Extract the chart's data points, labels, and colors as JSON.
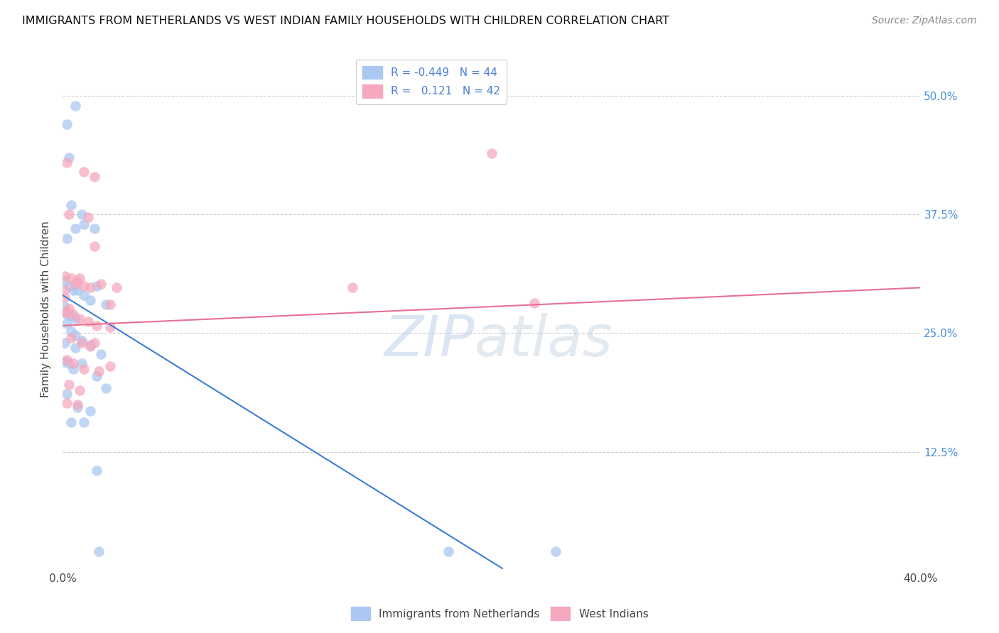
{
  "title": "IMMIGRANTS FROM NETHERLANDS VS WEST INDIAN FAMILY HOUSEHOLDS WITH CHILDREN CORRELATION CHART",
  "source": "Source: ZipAtlas.com",
  "ylabel": "Family Households with Children",
  "y_ticks": [
    "50.0%",
    "37.5%",
    "25.0%",
    "12.5%"
  ],
  "y_tick_vals": [
    0.5,
    0.375,
    0.25,
    0.125
  ],
  "xlim": [
    0.0,
    0.4
  ],
  "ylim": [
    0.0,
    0.55
  ],
  "legend_label_blue": "Immigrants from Netherlands",
  "legend_label_pink": "West Indians",
  "blue_scatter": [
    [
      0.002,
      0.47
    ],
    [
      0.006,
      0.49
    ],
    [
      0.003,
      0.435
    ],
    [
      0.004,
      0.385
    ],
    [
      0.009,
      0.375
    ],
    [
      0.002,
      0.35
    ],
    [
      0.006,
      0.36
    ],
    [
      0.01,
      0.365
    ],
    [
      0.015,
      0.36
    ],
    [
      0.001,
      0.305
    ],
    [
      0.003,
      0.3
    ],
    [
      0.005,
      0.295
    ],
    [
      0.007,
      0.295
    ],
    [
      0.01,
      0.29
    ],
    [
      0.013,
      0.285
    ],
    [
      0.016,
      0.3
    ],
    [
      0.001,
      0.278
    ],
    [
      0.002,
      0.27
    ],
    [
      0.004,
      0.268
    ],
    [
      0.006,
      0.265
    ],
    [
      0.002,
      0.26
    ],
    [
      0.004,
      0.252
    ],
    [
      0.006,
      0.248
    ],
    [
      0.009,
      0.242
    ],
    [
      0.013,
      0.238
    ],
    [
      0.018,
      0.228
    ],
    [
      0.02,
      0.28
    ],
    [
      0.001,
      0.22
    ],
    [
      0.003,
      0.218
    ],
    [
      0.005,
      0.212
    ],
    [
      0.009,
      0.218
    ],
    [
      0.016,
      0.205
    ],
    [
      0.02,
      0.192
    ],
    [
      0.002,
      0.186
    ],
    [
      0.007,
      0.172
    ],
    [
      0.013,
      0.168
    ],
    [
      0.004,
      0.156
    ],
    [
      0.01,
      0.156
    ],
    [
      0.001,
      0.24
    ],
    [
      0.006,
      0.235
    ],
    [
      0.017,
      0.02
    ],
    [
      0.23,
      0.02
    ],
    [
      0.016,
      0.105
    ],
    [
      0.18,
      0.02
    ]
  ],
  "pink_scatter": [
    [
      0.002,
      0.43
    ],
    [
      0.01,
      0.42
    ],
    [
      0.015,
      0.415
    ],
    [
      0.2,
      0.44
    ],
    [
      0.003,
      0.375
    ],
    [
      0.012,
      0.372
    ],
    [
      0.015,
      0.342
    ],
    [
      0.001,
      0.31
    ],
    [
      0.004,
      0.308
    ],
    [
      0.007,
      0.305
    ],
    [
      0.01,
      0.3
    ],
    [
      0.013,
      0.298
    ],
    [
      0.018,
      0.302
    ],
    [
      0.022,
      0.28
    ],
    [
      0.025,
      0.298
    ],
    [
      0.135,
      0.298
    ],
    [
      0.002,
      0.272
    ],
    [
      0.005,
      0.27
    ],
    [
      0.008,
      0.265
    ],
    [
      0.012,
      0.262
    ],
    [
      0.016,
      0.258
    ],
    [
      0.022,
      0.256
    ],
    [
      0.004,
      0.245
    ],
    [
      0.009,
      0.24
    ],
    [
      0.002,
      0.222
    ],
    [
      0.005,
      0.218
    ],
    [
      0.01,
      0.212
    ],
    [
      0.017,
      0.21
    ],
    [
      0.022,
      0.215
    ],
    [
      0.003,
      0.196
    ],
    [
      0.008,
      0.19
    ],
    [
      0.002,
      0.176
    ],
    [
      0.007,
      0.175
    ],
    [
      0.22,
      0.282
    ],
    [
      0.013,
      0.236
    ],
    [
      0.015,
      0.24
    ],
    [
      0.006,
      0.302
    ],
    [
      0.008,
      0.308
    ],
    [
      0.001,
      0.296
    ],
    [
      0.001,
      0.288
    ],
    [
      0.001,
      0.272
    ],
    [
      0.003,
      0.276
    ]
  ],
  "blue_line_x": [
    0.0,
    0.205
  ],
  "blue_line_y": [
    0.29,
    0.002
  ],
  "pink_line_x": [
    0.0,
    0.4
  ],
  "pink_line_y": [
    0.258,
    0.298
  ]
}
